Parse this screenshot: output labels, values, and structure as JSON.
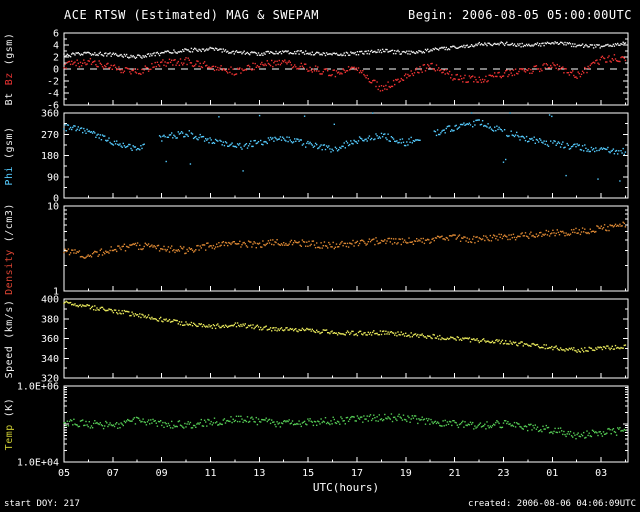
{
  "header": {
    "title": "ACE RTSW (Estimated) MAG & SWEPAM",
    "begin": "Begin: 2006-08-05 05:00:00UTC"
  },
  "footer": {
    "left": "start DOY: 217",
    "right": "created: 2006-08-06 04:06:09UTC"
  },
  "colors": {
    "background": "#000000",
    "frame": "#ffffff",
    "bt": "#eeeeee",
    "bz": "#ee3333",
    "phi": "#55ccff",
    "density": "#dd8833",
    "speed": "#e6e65a",
    "temp": "#55cc55"
  },
  "chart_data": {
    "type": "scatter",
    "title": "ACE RTSW (Estimated) MAG & SWEPAM",
    "x_label": "UTC(hours)",
    "x_range": [
      5,
      28.1
    ],
    "x_tick_values": [
      5,
      7,
      9,
      11,
      13,
      15,
      17,
      19,
      21,
      23,
      25,
      27
    ],
    "x_tick_labels": [
      "05",
      "07",
      "09",
      "11",
      "13",
      "15",
      "17",
      "19",
      "21",
      "23",
      "01",
      "03"
    ],
    "x_anchor_hours": [
      5,
      6,
      7,
      8,
      9,
      10,
      11,
      12,
      13,
      14,
      15,
      16,
      17,
      18,
      19,
      20,
      21,
      22,
      23,
      24,
      25,
      26,
      27,
      28
    ],
    "panels": [
      {
        "name": "bt-bz",
        "yscale": "linear",
        "ylim": [
          -6,
          6
        ],
        "zero_line": 0,
        "yticks": [
          {
            "v": 6,
            "l": "6"
          },
          {
            "v": 4,
            "l": "4"
          },
          {
            "v": 2,
            "l": "2"
          },
          {
            "v": 0,
            "l": "0"
          },
          {
            "v": -2,
            "l": "-2"
          },
          {
            "v": -4,
            "l": "-4"
          },
          {
            "v": -6,
            "l": "-6"
          }
        ],
        "ylabel": [
          {
            "text": "Bt",
            "color": "#eeeeee"
          },
          {
            "text": "Bz",
            "color": "#ee3333"
          },
          {
            "text": "(gsm)",
            "color": "#eeeeee"
          }
        ],
        "series": [
          {
            "name": "Bt",
            "color": "#eeeeee",
            "noise": 0.3,
            "y": [
              2.2,
              2.6,
              2.4,
              2.0,
              2.6,
              3.1,
              3.3,
              2.8,
              2.5,
              2.9,
              2.7,
              2.4,
              2.6,
              3.0,
              2.7,
              3.1,
              3.6,
              4.1,
              4.2,
              3.9,
              4.3,
              4.0,
              3.7,
              4.2
            ]
          },
          {
            "name": "Bz",
            "color": "#ee3333",
            "noise": 0.6,
            "y": [
              0.5,
              1.2,
              0.3,
              -0.6,
              0.9,
              1.3,
              0.4,
              -0.4,
              0.7,
              1.1,
              0.2,
              -0.8,
              0.3,
              -3.3,
              -1.2,
              0.6,
              -1.4,
              -1.9,
              -0.8,
              -0.4,
              0.8,
              -1.2,
              1.6,
              1.9
            ]
          }
        ]
      },
      {
        "name": "phi",
        "yscale": "linear",
        "ylim": [
          0,
          360
        ],
        "yticks": [
          {
            "v": 360,
            "l": "360"
          },
          {
            "v": 270,
            "l": "270"
          },
          {
            "v": 180,
            "l": "180"
          },
          {
            "v": 90,
            "l": "90"
          },
          {
            "v": 0,
            "l": "0"
          }
        ],
        "ylabel": [
          {
            "text": "Phi",
            "color": "#55ccff"
          },
          {
            "text": "(gsm)",
            "color": "#eeeeee"
          }
        ],
        "series": [
          {
            "name": "Phi",
            "color": "#55ccff",
            "noise": 14,
            "outlier": 115,
            "gaps": [
              [
                8.3,
                8.9
              ],
              [
                19.6,
                20.15
              ]
            ],
            "y": [
              300,
              285,
              235,
              205,
              255,
              275,
              245,
              215,
              235,
              255,
              225,
              205,
              245,
              265,
              235,
              270,
              300,
              320,
              280,
              250,
              230,
              215,
              205,
              195
            ]
          }
        ]
      },
      {
        "name": "density",
        "yscale": "log",
        "ylim": [
          1,
          10
        ],
        "yticks": [
          {
            "v": 10,
            "l": "10"
          },
          {
            "v": 1,
            "l": "1"
          }
        ],
        "ylabel": [
          {
            "text": "Density",
            "color": "#dd4433"
          },
          {
            "text": "(/cm3)",
            "color": "#eeeeee"
          }
        ],
        "series": [
          {
            "name": "Density",
            "color": "#dd8833",
            "noise": 0.04,
            "y": [
              3.0,
              2.6,
              3.1,
              3.4,
              3.2,
              3.0,
              3.4,
              3.6,
              3.5,
              3.8,
              3.6,
              3.4,
              3.7,
              3.9,
              3.8,
              4.0,
              4.2,
              4.0,
              4.3,
              4.5,
              4.8,
              5.0,
              5.4,
              6.0
            ]
          }
        ]
      },
      {
        "name": "speed",
        "yscale": "linear",
        "ylim": [
          320,
          400
        ],
        "yticks": [
          {
            "v": 400,
            "l": "400"
          },
          {
            "v": 380,
            "l": "380"
          },
          {
            "v": 360,
            "l": "360"
          },
          {
            "v": 340,
            "l": "340"
          },
          {
            "v": 320,
            "l": "320"
          }
        ],
        "ylabel": [
          {
            "text": "Speed",
            "color": "#eeeeee"
          },
          {
            "text": "(km/s)",
            "color": "#eeeeee"
          }
        ],
        "series": [
          {
            "name": "Speed",
            "color": "#e6e65a",
            "noise": 2.2,
            "y": [
              396,
              392,
              388,
              384,
              379,
              375,
              372,
              374,
              371,
              369,
              368,
              366,
              365,
              366,
              364,
              362,
              360,
              358,
              356,
              354,
              351,
              348,
              350,
              352
            ]
          }
        ]
      },
      {
        "name": "temp",
        "yscale": "log",
        "ylim": [
          10000,
          1000000
        ],
        "yticks": [
          {
            "v": 1000000,
            "l": "1.0E+06"
          },
          {
            "v": 10000,
            "l": "1.0E+04"
          }
        ],
        "ylabel": [
          {
            "text": "Temp",
            "color": "#cccc33"
          },
          {
            "text": "(K)",
            "color": "#eeeeee"
          }
        ],
        "series": [
          {
            "name": "Temp",
            "color": "#55cc55",
            "noise": 0.1,
            "y": [
              110000,
              100000,
              90000,
              120000,
              100000,
              95000,
              110000,
              130000,
              120000,
              100000,
              110000,
              120000,
              130000,
              150000,
              140000,
              120000,
              100000,
              90000,
              100000,
              80000,
              70000,
              50000,
              60000,
              65000
            ]
          }
        ]
      }
    ]
  }
}
